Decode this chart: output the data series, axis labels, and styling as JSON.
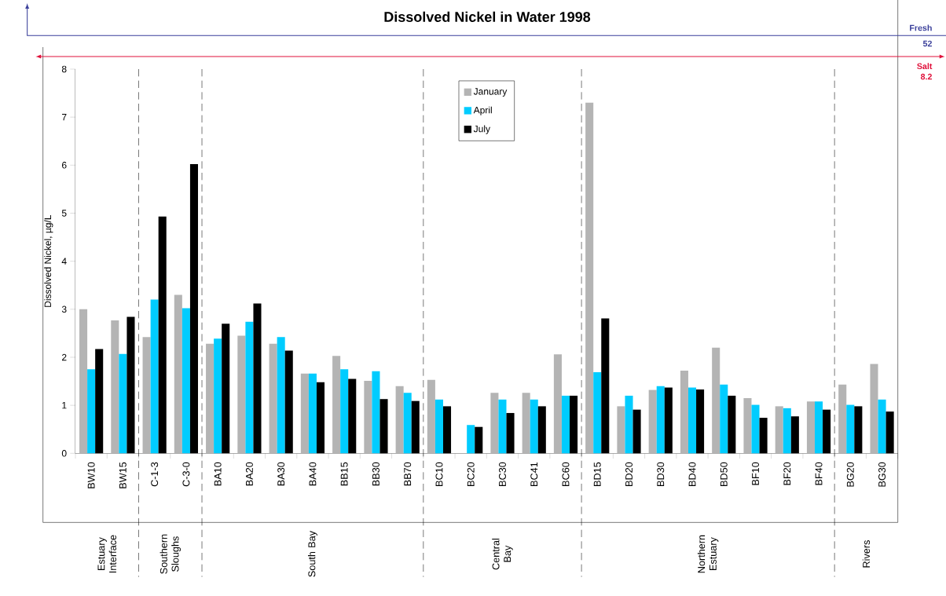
{
  "chart_data": {
    "type": "bar",
    "title": "Dissolved Nickel in Water 1998",
    "ylabel": "Dissolved Nickel, µg/L",
    "categories": [
      "BW10",
      "BW15",
      "C-1-3",
      "C-3-0",
      "BA10",
      "BA20",
      "BA30",
      "BA40",
      "BB15",
      "BB30",
      "BB70",
      "BC10",
      "BC20",
      "BC30",
      "BC41",
      "BC60",
      "BD15",
      "BD20",
      "BD30",
      "BD40",
      "BD50",
      "BF10",
      "BF20",
      "BF40",
      "BG20",
      "BG30"
    ],
    "series": [
      {
        "name": "January",
        "color": "#b4b4b4",
        "values": [
          3.0,
          2.77,
          2.42,
          3.3,
          2.28,
          2.45,
          2.28,
          1.66,
          2.03,
          1.51,
          1.4,
          1.53,
          null,
          1.26,
          1.26,
          2.06,
          7.3,
          0.98,
          1.32,
          1.72,
          2.2,
          1.15,
          0.98,
          1.08,
          1.43,
          1.86
        ]
      },
      {
        "name": "April",
        "color": "#00ccff",
        "values": [
          1.75,
          2.07,
          3.2,
          3.02,
          2.39,
          2.74,
          2.42,
          1.66,
          1.75,
          1.71,
          1.26,
          1.12,
          0.59,
          1.12,
          1.12,
          1.2,
          1.69,
          1.2,
          1.4,
          1.37,
          1.43,
          1.01,
          0.94,
          1.08,
          1.01,
          1.12
        ]
      },
      {
        "name": "July",
        "color": "#000000",
        "values": [
          2.17,
          2.84,
          4.93,
          6.02,
          2.7,
          3.12,
          2.14,
          1.48,
          1.55,
          1.13,
          1.09,
          0.98,
          0.55,
          0.84,
          0.98,
          1.2,
          2.81,
          0.91,
          1.37,
          1.33,
          1.2,
          0.74,
          0.77,
          0.91,
          0.98,
          0.87
        ]
      }
    ],
    "ylim": [
      0,
      8
    ],
    "yticks": [
      0,
      1,
      2,
      3,
      4,
      5,
      6,
      7,
      8
    ],
    "legend": "top",
    "bands": [
      {
        "axis": "x",
        "from": "BW10",
        "to": "BW15",
        "color": "#ffffff"
      },
      {
        "axis": "x",
        "from": "C-1-3",
        "to": "C-3-0",
        "color": "#ffffff"
      },
      {
        "axis": "x",
        "from": "BA10",
        "to": "BB70",
        "color": "#ffffff"
      },
      {
        "axis": "x",
        "from": "BC10",
        "to": "BC60",
        "color": "#ffffff"
      },
      {
        "axis": "x",
        "from": "BD15",
        "to": "BF40",
        "color": "#ffffff"
      },
      {
        "axis": "x",
        "from": "BG20",
        "to": "BG30",
        "color": "#ffffff"
      }
    ],
    "annotations": [
      "Fresh 52",
      "Salt 8.2",
      "Estuary Interface",
      "Southern Sloughs",
      "South Bay",
      "Central Bay",
      "Northern Estuary",
      "Rivers"
    ]
  }
}
